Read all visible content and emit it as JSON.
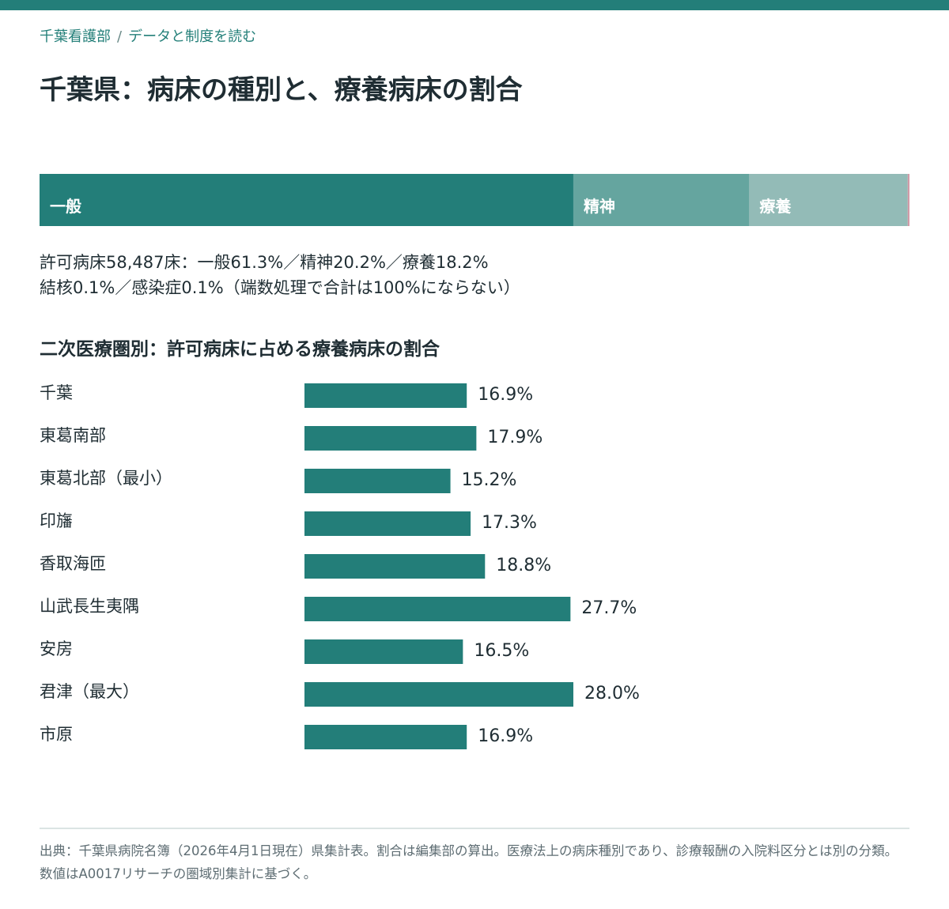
{
  "colors": {
    "accent": "#237e79",
    "psych": "#65a59f",
    "ryoyo": "#93bbb7",
    "small": "#cf97a4",
    "text": "#1f2d33"
  },
  "breadcrumb": {
    "section": "千葉看護部",
    "separator": "/",
    "page": "データと制度を読む"
  },
  "title": "千葉県：病床の種別と、療養病床の割合",
  "stack": {
    "segments": [
      {
        "label": "一般",
        "value": 61.3
      },
      {
        "label": "精神",
        "value": 20.2
      },
      {
        "label": "療養",
        "value": 18.2
      },
      {
        "label": "",
        "value": 0.1
      },
      {
        "label": "",
        "value": 0.1
      }
    ]
  },
  "summary": {
    "line1": "許可病床58,487床：一般61.3%／精神20.2%／療養18.2%",
    "line2": "結核0.1%／感染症0.1%（端数処理で合計は100%にならない）"
  },
  "subheading": "二次医療圏別：許可病床に占める療養病床の割合",
  "chart_data": {
    "type": "bar",
    "orientation": "horizontal",
    "categories": [
      "千葉",
      "東葛南部",
      "東葛北部（最小）",
      "印旛",
      "香取海匝",
      "山武長生夷隅",
      "安房",
      "君津（最大）",
      "市原"
    ],
    "values": [
      16.9,
      17.9,
      15.2,
      17.3,
      18.8,
      27.7,
      16.5,
      28.0,
      16.9
    ],
    "value_labels": [
      "16.9%",
      "17.9%",
      "15.2%",
      "17.3%",
      "18.8%",
      "27.7%",
      "16.5%",
      "28.0%",
      "16.9%"
    ],
    "title": "二次医療圏別：許可病床に占める療養病床の割合",
    "xlabel": "",
    "ylabel": "",
    "xlim": [
      0,
      63
    ]
  },
  "source": "出典：千葉県病院名簿（2026年4月1日現在）県集計表。割合は編集部の算出。医療法上の病床種別であり、診療報酬の入院料区分とは別の分類。数値はA0017リサーチの圏域別集計に基づく。"
}
